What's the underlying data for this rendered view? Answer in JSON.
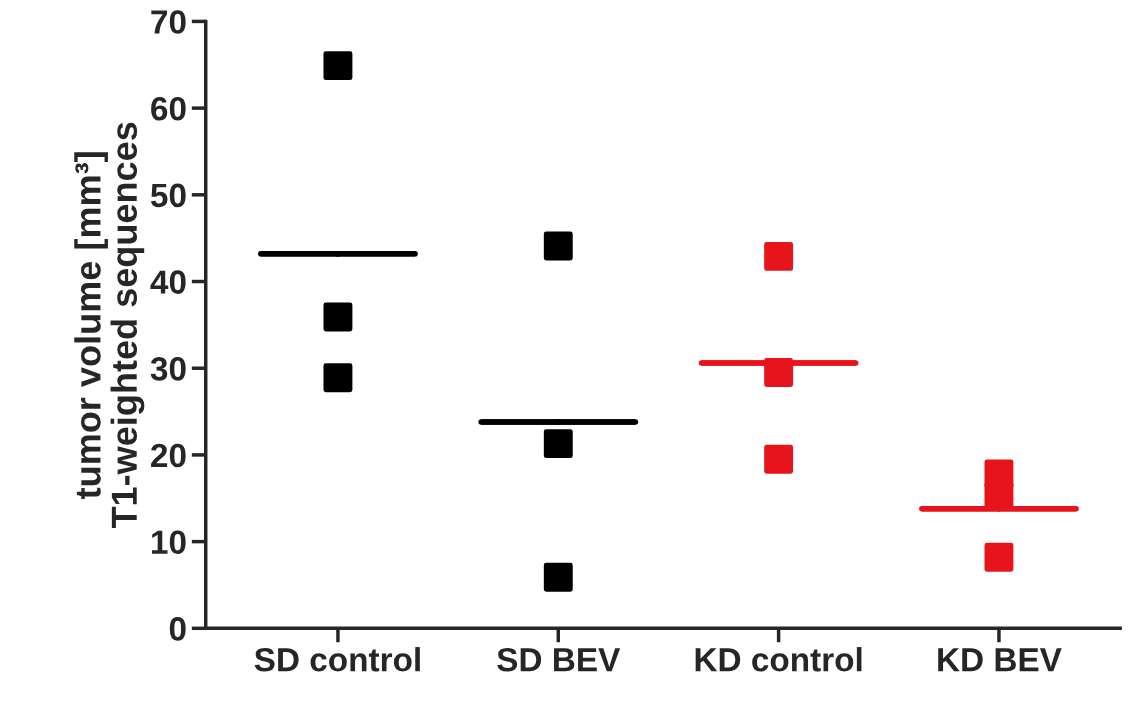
{
  "chart_data": {
    "type": "scatter",
    "ylabel": "tumor volume [mm³]\nT1-weighted sequences",
    "categories": [
      "SD control",
      "SD BEV",
      "KD control",
      "KD BEV"
    ],
    "ylim": [
      0,
      70
    ],
    "yticks": [
      0,
      10,
      20,
      30,
      40,
      50,
      60,
      70
    ],
    "grid": false,
    "legend": false,
    "marker": "square",
    "series": [
      {
        "color": "#000000",
        "x": [
          "SD control",
          "SD control",
          "SD control"
        ],
        "values": [
          64.9,
          35.9,
          28.9
        ]
      },
      {
        "color": "#000000",
        "x": [
          "SD BEV",
          "SD BEV",
          "SD BEV"
        ],
        "values": [
          44.1,
          21.3,
          5.9
        ]
      },
      {
        "color": "#e8141c",
        "x": [
          "KD control",
          "KD control",
          "KD control"
        ],
        "values": [
          42.9,
          29.5,
          19.5
        ]
      },
      {
        "color": "#e8141c",
        "x": [
          "KD BEV",
          "KD BEV",
          "KD BEV"
        ],
        "values": [
          17.8,
          15.2,
          8.2
        ]
      },
      {
        "type": "box",
        "colors": [
          "#000000",
          "#000000",
          "#e8141c",
          "#e8141c"
        ],
        "boxes": [
          {
            "low": 43.2,
            "q1": 43.2,
            "median": 43.2,
            "q3": 43.2,
            "high": 43.2
          },
          {
            "low": 23.8,
            "q1": 23.8,
            "median": 23.8,
            "q3": 23.8,
            "high": 23.8
          },
          {
            "low": 30.6,
            "q1": 30.6,
            "median": 30.6,
            "q3": 30.6,
            "high": 30.6
          },
          {
            "low": 13.8,
            "q1": 13.8,
            "median": 13.8,
            "q3": 13.8,
            "high": 13.8
          }
        ]
      }
    ]
  }
}
